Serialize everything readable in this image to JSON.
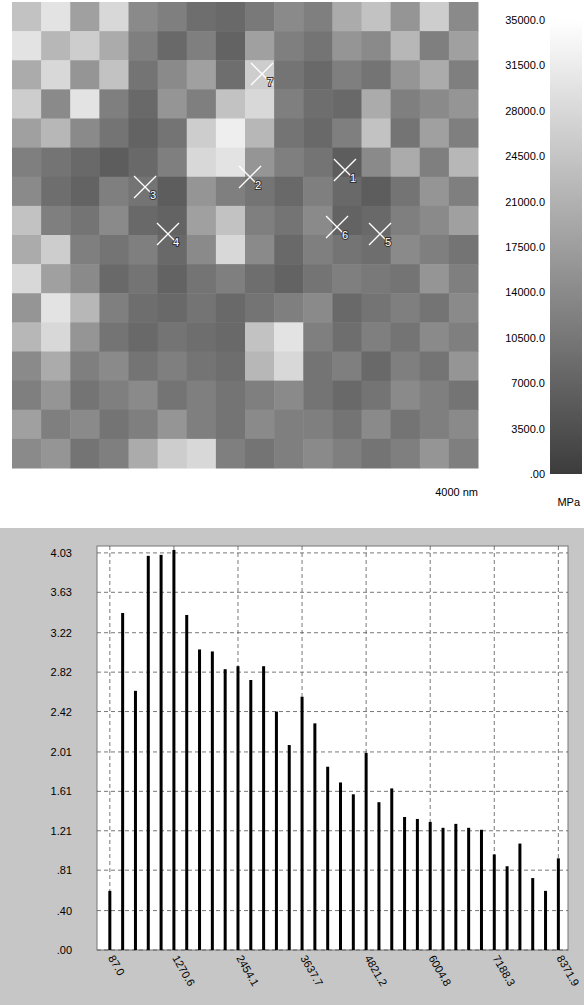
{
  "chart_data": [
    {
      "type": "heatmap",
      "xlabel": "4000 nm",
      "unit": "MPa",
      "tick_labels": false,
      "xlim": [
        0,
        4000
      ],
      "ylim": [
        0,
        4000
      ],
      "cells": [
        [
          24000,
          30000,
          18000,
          28000,
          14000,
          12000,
          9000,
          8000,
          11000,
          14000,
          12000,
          20000,
          24000,
          16000,
          26000,
          14000
        ],
        [
          30000,
          22000,
          26000,
          20000,
          12000,
          8000,
          12000,
          7000,
          18000,
          12000,
          10000,
          16000,
          14000,
          22000,
          12000,
          18000
        ],
        [
          20000,
          28000,
          16000,
          24000,
          10000,
          14000,
          18000,
          9000,
          26000,
          10000,
          8000,
          12000,
          10000,
          16000,
          20000,
          12000
        ],
        [
          26000,
          14000,
          30000,
          12000,
          8000,
          16000,
          12000,
          24000,
          28000,
          12000,
          9000,
          8000,
          20000,
          12000,
          14000,
          16000
        ],
        [
          18000,
          22000,
          14000,
          10000,
          7000,
          10000,
          26000,
          32000,
          22000,
          10000,
          8000,
          12000,
          24000,
          10000,
          18000,
          12000
        ],
        [
          12000,
          10000,
          8000,
          6000,
          8000,
          12000,
          28000,
          30000,
          16000,
          12000,
          10000,
          6000,
          14000,
          20000,
          12000,
          22000
        ],
        [
          14000,
          9000,
          7000,
          12000,
          10000,
          6000,
          16000,
          12000,
          10000,
          8000,
          12000,
          8000,
          6000,
          10000,
          16000,
          12000
        ],
        [
          24000,
          12000,
          10000,
          14000,
          8000,
          7000,
          18000,
          24000,
          12000,
          10000,
          14000,
          7000,
          8000,
          12000,
          14000,
          18000
        ],
        [
          20000,
          26000,
          12000,
          10000,
          12000,
          8000,
          14000,
          28000,
          14000,
          8000,
          12000,
          10000,
          9000,
          14000,
          12000,
          10000
        ],
        [
          28000,
          18000,
          14000,
          8000,
          10000,
          7000,
          10000,
          12000,
          9000,
          7000,
          10000,
          12000,
          11000,
          10000,
          16000,
          12000
        ],
        [
          16000,
          30000,
          22000,
          12000,
          9000,
          8000,
          10000,
          8000,
          10000,
          12000,
          14000,
          8000,
          10000,
          12000,
          10000,
          14000
        ],
        [
          22000,
          28000,
          16000,
          10000,
          8000,
          10000,
          9000,
          8000,
          24000,
          30000,
          12000,
          9000,
          12000,
          10000,
          14000,
          12000
        ],
        [
          14000,
          20000,
          12000,
          14000,
          10000,
          12000,
          10000,
          9000,
          22000,
          28000,
          10000,
          12000,
          8000,
          12000,
          10000,
          16000
        ],
        [
          12000,
          16000,
          10000,
          12000,
          14000,
          10000,
          12000,
          10000,
          12000,
          14000,
          10000,
          8000,
          10000,
          14000,
          12000,
          10000
        ],
        [
          18000,
          12000,
          14000,
          10000,
          12000,
          16000,
          12000,
          10000,
          14000,
          12000,
          12000,
          10000,
          14000,
          10000,
          12000,
          14000
        ],
        [
          14000,
          16000,
          10000,
          12000,
          20000,
          26000,
          28000,
          12000,
          10000,
          12000,
          14000,
          12000,
          10000,
          12000,
          16000,
          12000
        ]
      ],
      "colorbar_range": [
        0,
        35000
      ],
      "colorbar_ticks": [
        {
          "value": 0,
          "label": ".00"
        },
        {
          "value": 3500,
          "label": "3500.0"
        },
        {
          "value": 7000,
          "label": "7000.0"
        },
        {
          "value": 10500,
          "label": "10500.0"
        },
        {
          "value": 14000,
          "label": "14000.0"
        },
        {
          "value": 17500,
          "label": "17500.0"
        },
        {
          "value": 21000,
          "label": "21000.0"
        },
        {
          "value": 24500,
          "label": "24500.0"
        },
        {
          "value": 28000,
          "label": "28000.0"
        },
        {
          "value": 31500,
          "label": "31500.0"
        },
        {
          "value": 35000,
          "label": "35000.0"
        }
      ],
      "markers": [
        {
          "label": "1",
          "x": 2858,
          "y": 1442
        },
        {
          "label": "2",
          "x": 2043,
          "y": 1502
        },
        {
          "label": "3",
          "x": 1142,
          "y": 1588
        },
        {
          "label": "4",
          "x": 1339,
          "y": 1991
        },
        {
          "label": "5",
          "x": 3159,
          "y": 1991
        },
        {
          "label": "6",
          "x": 2790,
          "y": 1931
        },
        {
          "label": "7",
          "x": 2146,
          "y": 618
        }
      ]
    },
    {
      "type": "bar",
      "color": "#000000",
      "grid": true,
      "x": [
        87.0,
        323.7,
        560.4,
        797.1,
        1033.8,
        1270.6,
        1507.3,
        1744.0,
        1980.7,
        2217.4,
        2454.1,
        2690.8,
        2927.5,
        3164.2,
        3400.9,
        3637.7,
        3874.4,
        4111.1,
        4347.8,
        4584.5,
        4821.2,
        5057.9,
        5294.6,
        5531.3,
        5768.0,
        6004.8,
        6241.5,
        6478.2,
        6714.9,
        6951.6,
        7188.3,
        7425.0,
        7661.7,
        7898.4,
        8135.1,
        8371.9
      ],
      "values": [
        0.6,
        3.42,
        2.63,
        4.0,
        4.01,
        4.06,
        3.4,
        3.05,
        3.03,
        2.85,
        2.88,
        2.74,
        2.88,
        2.42,
        2.08,
        2.57,
        2.3,
        1.86,
        1.7,
        1.58,
        2.0,
        1.5,
        1.64,
        1.35,
        1.33,
        1.3,
        1.24,
        1.28,
        1.24,
        1.22,
        0.97,
        0.85,
        1.08,
        0.73,
        0.6,
        0.93
      ],
      "xlim": [
        -150,
        8550
      ],
      "ylim": [
        0,
        4.1
      ],
      "xticks": [
        {
          "value": 87.0,
          "label": "87.0"
        },
        1270.6,
        2454.1,
        3637.7,
        4821.2,
        6004.8,
        7188.3,
        8371.9
      ],
      "yticks": [
        {
          "value": 0,
          "label": ".00"
        },
        {
          "value": 0.4,
          "label": ".40"
        },
        {
          "value": 0.81,
          "label": ".81"
        },
        1.21,
        1.61,
        2.01,
        2.42,
        2.82,
        3.22,
        3.63,
        4.03
      ]
    }
  ]
}
